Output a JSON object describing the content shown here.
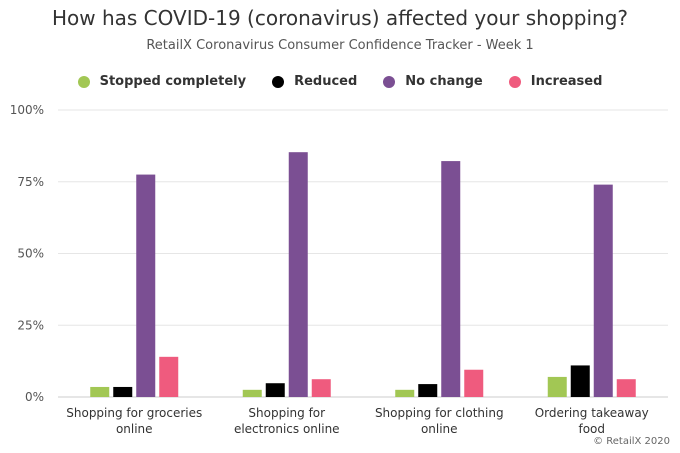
{
  "chart_data": {
    "type": "bar",
    "title": "How has COVID-19 (coronavirus) affected your shopping?",
    "subtitle": "RetailX Coronavirus Consumer Confidence Tracker - Week 1",
    "categories": [
      [
        "Shopping for groceries",
        "online"
      ],
      [
        "Shopping for",
        "electronics online"
      ],
      [
        "Shopping for clothing",
        "online"
      ],
      [
        "Ordering takeaway",
        "food"
      ]
    ],
    "series": [
      {
        "name": "Stopped completely",
        "color": "#a2c754",
        "values": [
          3.5,
          2.5,
          2.5,
          7
        ]
      },
      {
        "name": "Reduced",
        "color": "#000000",
        "values": [
          3.5,
          4.8,
          4.5,
          11
        ]
      },
      {
        "name": "No change",
        "color": "#7b4f93",
        "values": [
          77.5,
          85.3,
          82.2,
          74
        ]
      },
      {
        "name": "Increased",
        "color": "#ef5b7e",
        "values": [
          14,
          6.2,
          9.5,
          6.2
        ]
      }
    ],
    "ylim": [
      0,
      100
    ],
    "yticks": [
      "0%",
      "25%",
      "50%",
      "75%",
      "100%"
    ],
    "ytick_values": [
      0,
      25,
      50,
      75,
      100
    ],
    "grid": true,
    "legend_position": "top"
  },
  "credit": "© RetailX 2020"
}
